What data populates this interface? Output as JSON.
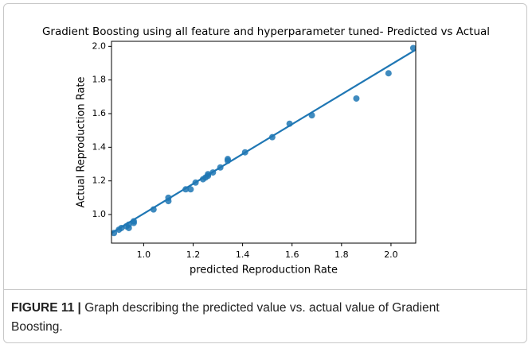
{
  "chart_data": {
    "type": "scatter",
    "title": "Gradient Boosting using all feature and hyperparameter tuned- Predicted vs Actual",
    "x_label": "predicted Reproduction Rate",
    "y_label": "Actual Reproduction Rate",
    "color": "#1f77b4",
    "x": [
      0.88,
      0.9,
      0.91,
      0.93,
      0.94,
      0.94,
      0.96,
      0.96,
      1.04,
      1.1,
      1.1,
      1.17,
      1.19,
      1.21,
      1.24,
      1.25,
      1.26,
      1.26,
      1.28,
      1.31,
      1.34,
      1.34,
      1.41,
      1.52,
      1.59,
      1.68,
      1.86,
      1.99,
      2.09
    ],
    "values": [
      0.89,
      0.91,
      0.92,
      0.93,
      0.92,
      0.94,
      0.96,
      0.95,
      1.03,
      1.1,
      1.08,
      1.15,
      1.15,
      1.19,
      1.21,
      1.22,
      1.23,
      1.24,
      1.25,
      1.28,
      1.33,
      1.32,
      1.37,
      1.46,
      1.54,
      1.59,
      1.69,
      1.84,
      1.99
    ],
    "fit": {
      "x": [
        0.87,
        2.1
      ],
      "values": [
        0.89,
        1.98
      ]
    },
    "xlim": [
      0.87,
      2.1
    ],
    "ylim": [
      0.83,
      2.03
    ],
    "xticks": [
      {
        "value": 1,
        "label": "1.0"
      },
      1.2,
      1.4,
      1.6,
      1.8,
      {
        "value": 2,
        "label": "2.0"
      }
    ],
    "yticks": [
      {
        "value": 1,
        "label": "1.0"
      },
      1.2,
      1.4,
      1.6,
      1.8,
      {
        "value": 2,
        "label": "2.0"
      }
    ]
  },
  "caption": {
    "label": "FIGURE 11 |",
    "text": "Graph describing the predicted value vs. actual value of Gradient Boosting."
  }
}
